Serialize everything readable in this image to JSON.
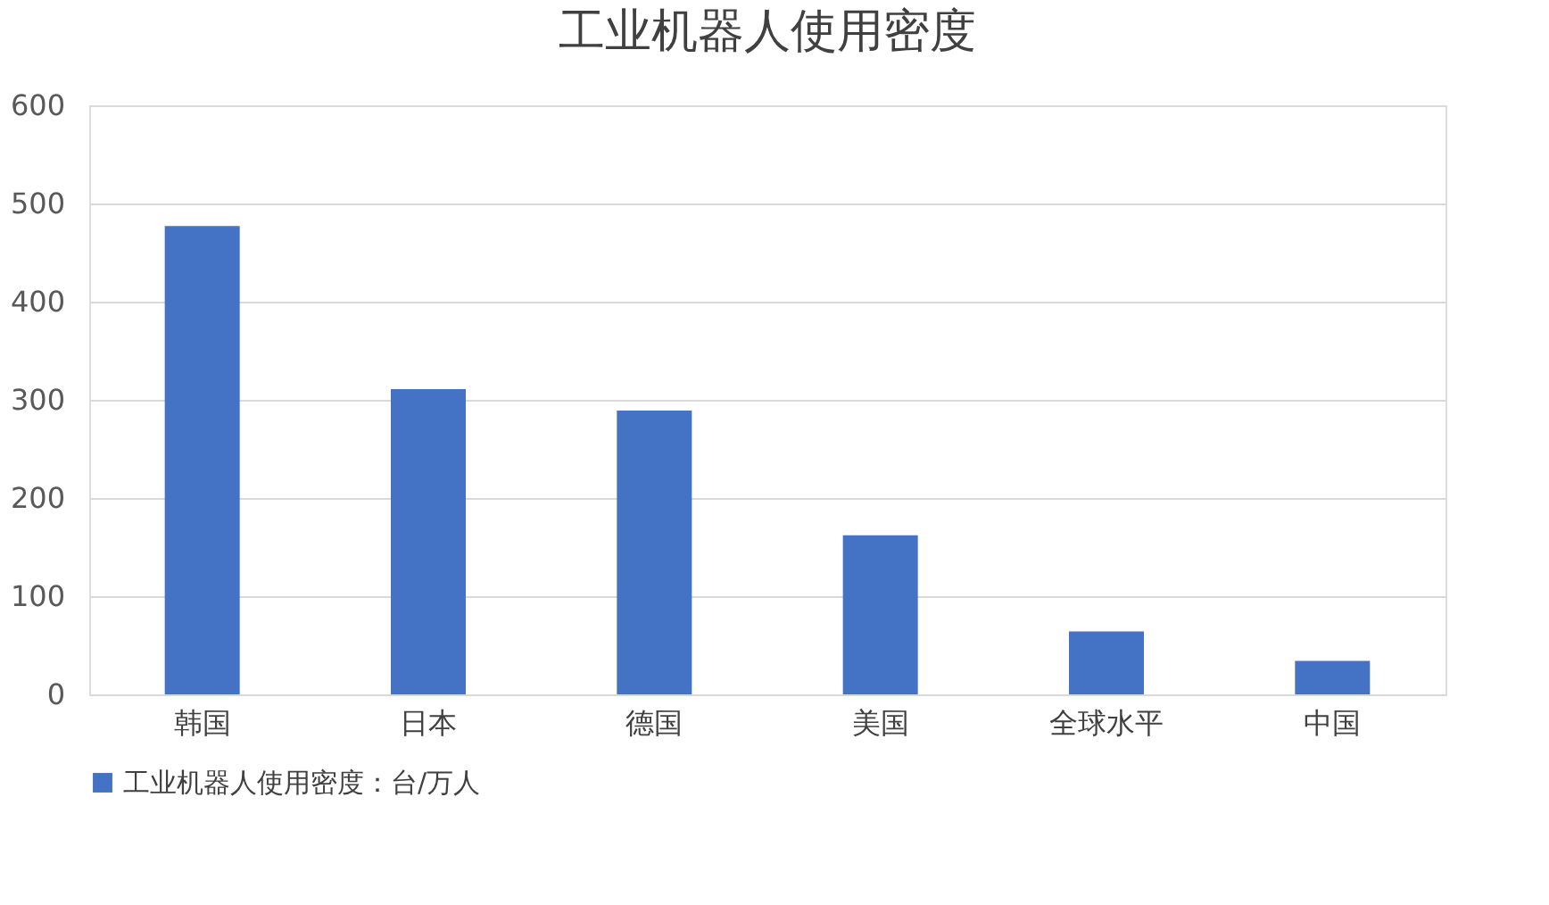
{
  "chart_data": {
    "type": "bar",
    "title": "工业机器人使用密度",
    "categories": [
      "韩国",
      "日本",
      "德国",
      "美国",
      "全球水平",
      "中国"
    ],
    "series": [
      {
        "name": "工业机器人使用密度：台/万人",
        "color": "#4472c4",
        "values": [
          477,
          311,
          289,
          162,
          64,
          34
        ]
      }
    ],
    "ylim": [
      0,
      600
    ],
    "yticks": [
      0,
      100,
      200,
      300,
      400,
      500,
      600
    ],
    "grid": "y",
    "legend": "bottom"
  }
}
